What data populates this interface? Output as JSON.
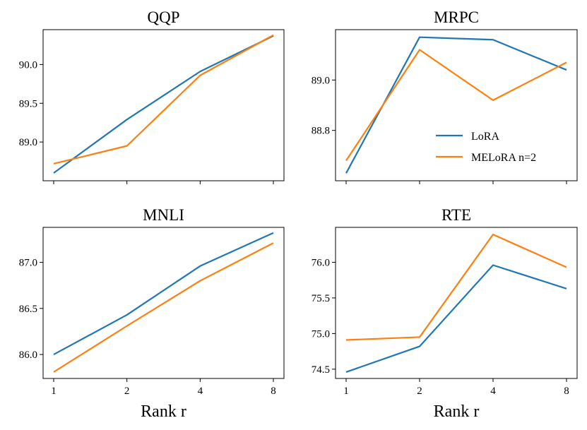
{
  "figure": {
    "xlabel": "Rank r"
  },
  "colors": {
    "lora": "#1f77b4",
    "melora": "#ff7f0e"
  },
  "chart_data": [
    {
      "type": "line",
      "title": "QQP",
      "categories": [
        "1",
        "2",
        "4",
        "8"
      ],
      "xlabel": "",
      "ylabel": "",
      "ylim": [
        88.5,
        90.45
      ],
      "yticks": [
        89.0,
        89.5,
        90.0
      ],
      "show_xtick_labels": false,
      "legend": null,
      "series": [
        {
          "name": "LoRA",
          "color": "#1f77b4",
          "values": [
            88.6,
            89.29,
            89.91,
            90.37
          ]
        },
        {
          "name": "MELoRA n=2",
          "color": "#ff7f0e",
          "values": [
            88.72,
            88.95,
            89.86,
            90.38
          ]
        }
      ]
    },
    {
      "type": "line",
      "title": "MRPC",
      "categories": [
        "1",
        "2",
        "4",
        "8"
      ],
      "xlabel": "",
      "ylabel": "",
      "ylim": [
        88.6,
        89.2
      ],
      "yticks": [
        88.8,
        89.0
      ],
      "show_xtick_labels": false,
      "legend": "lower-right",
      "series": [
        {
          "name": "LoRA",
          "color": "#1f77b4",
          "values": [
            88.63,
            89.17,
            89.16,
            89.04
          ]
        },
        {
          "name": "MELoRA n=2",
          "color": "#ff7f0e",
          "values": [
            88.68,
            89.12,
            88.92,
            89.07
          ]
        }
      ]
    },
    {
      "type": "line",
      "title": "MNLI",
      "categories": [
        "1",
        "2",
        "4",
        "8"
      ],
      "xlabel": "Rank r",
      "ylabel": "",
      "ylim": [
        85.74,
        87.38
      ],
      "yticks": [
        86.0,
        86.5,
        87.0
      ],
      "show_xtick_labels": true,
      "legend": null,
      "series": [
        {
          "name": "LoRA",
          "color": "#1f77b4",
          "values": [
            86.0,
            86.43,
            86.96,
            87.32
          ]
        },
        {
          "name": "MELoRA n=2",
          "color": "#ff7f0e",
          "values": [
            85.81,
            86.31,
            86.8,
            87.21
          ]
        }
      ]
    },
    {
      "type": "line",
      "title": "RTE",
      "categories": [
        "1",
        "2",
        "4",
        "8"
      ],
      "xlabel": "Rank r",
      "ylabel": "",
      "ylim": [
        74.37,
        76.49
      ],
      "yticks": [
        74.5,
        75.0,
        75.5,
        76.0
      ],
      "show_xtick_labels": true,
      "legend": null,
      "series": [
        {
          "name": "LoRA",
          "color": "#1f77b4",
          "values": [
            74.46,
            74.82,
            75.96,
            75.63
          ]
        },
        {
          "name": "MELoRA n=2",
          "color": "#ff7f0e",
          "values": [
            74.91,
            74.95,
            76.39,
            75.93
          ]
        }
      ]
    }
  ]
}
